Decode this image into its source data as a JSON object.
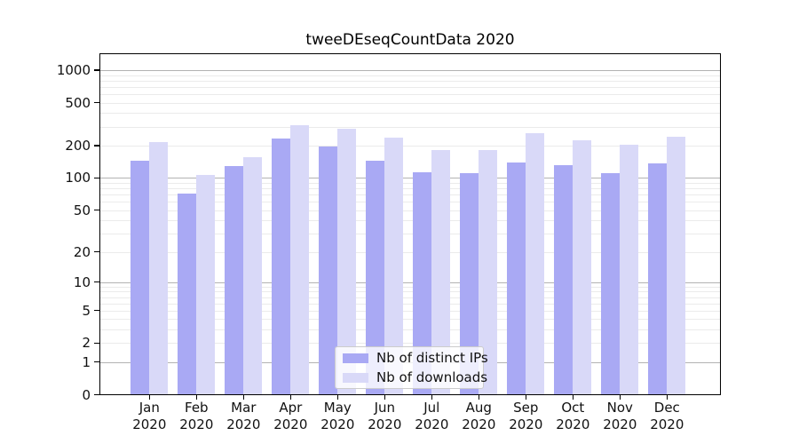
{
  "title": "tweeDEseqCountData 2020",
  "chart_data": {
    "type": "bar",
    "title": "tweeDEseqCountData 2020",
    "categories": [
      "Jan",
      "Feb",
      "Mar",
      "Apr",
      "May",
      "Jun",
      "Jul",
      "Aug",
      "Sep",
      "Oct",
      "Nov",
      "Dec"
    ],
    "category_year": "2020",
    "series": [
      {
        "name": "Nb of distinct IPs",
        "color": "#a9a9f4",
        "values": [
          145,
          72,
          130,
          235,
          197,
          146,
          112,
          110,
          139,
          132,
          110,
          137
        ]
      },
      {
        "name": "Nb of downloads",
        "color": "#d9d9f8",
        "values": [
          216,
          107,
          156,
          310,
          287,
          239,
          182,
          182,
          261,
          224,
          202,
          244
        ]
      }
    ],
    "yscale": "log1p",
    "y_ticks": [
      0,
      1,
      2,
      5,
      10,
      20,
      50,
      100,
      200,
      500,
      1000
    ],
    "ylim": [
      0,
      1100
    ],
    "xlabel": "",
    "ylabel": "",
    "grid": "horizontal-log-minor-and-major",
    "legend_position": "inside-bottom-center"
  },
  "colors": {
    "background": "#ffffff",
    "bar_ips": "#a9a9f4",
    "bar_downloads": "#d9d9f8",
    "grid_minor": "#ebebeb",
    "grid_major": "#b2b2b2",
    "axis": "#000000",
    "text": "#111111",
    "legend_border": "#cccccc"
  }
}
